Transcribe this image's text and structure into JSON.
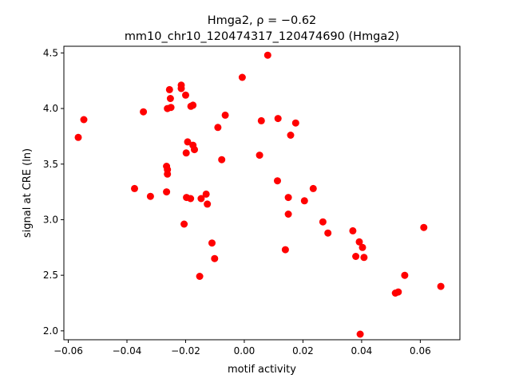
{
  "chart_data": {
    "type": "scatter",
    "title_line1": "Hmga2, ρ = −0.62",
    "title_line2": "mm10_chr10_120474317_120474690 (Hmga2)",
    "xlabel": "motif activity",
    "ylabel": "signal at CRE (ln)",
    "xlim": [
      -0.0615,
      0.0735
    ],
    "ylim": [
      1.92,
      4.56
    ],
    "xticks": [
      -0.06,
      -0.04,
      -0.02,
      0.0,
      0.02,
      0.04,
      0.06
    ],
    "xtick_labels": [
      "−0.06",
      "−0.04",
      "−0.02",
      "0.00",
      "0.02",
      "0.04",
      "0.06"
    ],
    "yticks": [
      2.0,
      2.5,
      3.0,
      3.5,
      4.0,
      4.5
    ],
    "ytick_labels": [
      "2.0",
      "2.5",
      "3.0",
      "3.5",
      "4.0",
      "4.5"
    ],
    "marker_color": "#ff0000",
    "grid": false,
    "points": [
      {
        "x": -0.0566,
        "y": 3.74
      },
      {
        "x": -0.0547,
        "y": 3.9
      },
      {
        "x": -0.0374,
        "y": 3.28
      },
      {
        "x": -0.0344,
        "y": 3.97
      },
      {
        "x": -0.032,
        "y": 3.21
      },
      {
        "x": -0.0265,
        "y": 3.48
      },
      {
        "x": -0.0262,
        "y": 3.45
      },
      {
        "x": -0.0262,
        "y": 3.41
      },
      {
        "x": -0.0265,
        "y": 3.25
      },
      {
        "x": -0.0262,
        "y": 4.0
      },
      {
        "x": -0.0255,
        "y": 4.17
      },
      {
        "x": -0.0252,
        "y": 4.09
      },
      {
        "x": -0.025,
        "y": 4.01
      },
      {
        "x": -0.0215,
        "y": 4.21
      },
      {
        "x": -0.0215,
        "y": 4.18
      },
      {
        "x": -0.0205,
        "y": 2.96
      },
      {
        "x": -0.02,
        "y": 4.12
      },
      {
        "x": -0.0198,
        "y": 3.6
      },
      {
        "x": -0.0197,
        "y": 3.2
      },
      {
        "x": -0.0193,
        "y": 3.7
      },
      {
        "x": -0.0183,
        "y": 3.19
      },
      {
        "x": -0.0182,
        "y": 4.02
      },
      {
        "x": -0.0175,
        "y": 4.03
      },
      {
        "x": -0.0175,
        "y": 3.67
      },
      {
        "x": -0.017,
        "y": 3.63
      },
      {
        "x": -0.0152,
        "y": 2.49
      },
      {
        "x": -0.0147,
        "y": 3.19
      },
      {
        "x": -0.013,
        "y": 3.23
      },
      {
        "x": -0.0126,
        "y": 3.14
      },
      {
        "x": -0.011,
        "y": 2.79
      },
      {
        "x": -0.0101,
        "y": 2.65
      },
      {
        "x": -0.009,
        "y": 3.83
      },
      {
        "x": -0.0077,
        "y": 3.54
      },
      {
        "x": -0.0065,
        "y": 3.94
      },
      {
        "x": -0.0007,
        "y": 4.28
      },
      {
        "x": 0.0052,
        "y": 3.58
      },
      {
        "x": 0.0058,
        "y": 3.89
      },
      {
        "x": 0.008,
        "y": 4.48
      },
      {
        "x": 0.0113,
        "y": 3.35
      },
      {
        "x": 0.0115,
        "y": 3.91
      },
      {
        "x": 0.014,
        "y": 2.73
      },
      {
        "x": 0.015,
        "y": 3.05
      },
      {
        "x": 0.015,
        "y": 3.2
      },
      {
        "x": 0.0158,
        "y": 3.76
      },
      {
        "x": 0.0175,
        "y": 3.87
      },
      {
        "x": 0.0205,
        "y": 3.17
      },
      {
        "x": 0.0235,
        "y": 3.28
      },
      {
        "x": 0.0268,
        "y": 2.98
      },
      {
        "x": 0.0285,
        "y": 2.88
      },
      {
        "x": 0.037,
        "y": 2.9
      },
      {
        "x": 0.038,
        "y": 2.67
      },
      {
        "x": 0.0392,
        "y": 2.8
      },
      {
        "x": 0.0395,
        "y": 1.97
      },
      {
        "x": 0.0403,
        "y": 2.75
      },
      {
        "x": 0.0408,
        "y": 2.66
      },
      {
        "x": 0.0515,
        "y": 2.34
      },
      {
        "x": 0.0525,
        "y": 2.35
      },
      {
        "x": 0.0547,
        "y": 2.5
      },
      {
        "x": 0.0612,
        "y": 2.93
      },
      {
        "x": 0.067,
        "y": 2.4
      }
    ]
  }
}
